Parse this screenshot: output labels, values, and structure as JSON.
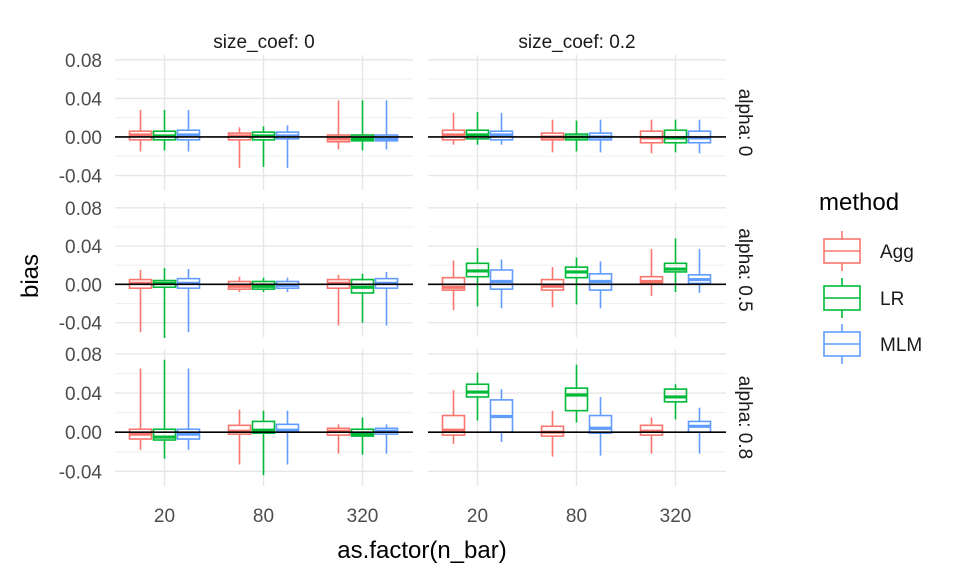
{
  "chart_data": {
    "type": "boxplot",
    "xlabel": "as.factor(n_bar)",
    "ylabel": "bias",
    "categories": [
      "20",
      "80",
      "320"
    ],
    "ylim": [
      -0.055,
      0.085
    ],
    "yticks": [
      -0.04,
      0.0,
      0.04,
      0.08
    ],
    "ytick_labels": [
      "-0.04",
      "0.00",
      "0.04",
      "0.08"
    ],
    "reference_line": 0,
    "grid": true,
    "facet_cols": [
      "size_coef: 0",
      "size_coef: 0.2"
    ],
    "facet_rows": [
      "alpha: 0",
      "alpha: 0.5",
      "alpha: 0.8"
    ],
    "legend": {
      "title": "method",
      "position": "right",
      "entries": [
        {
          "name": "Agg",
          "color": "#F8766D"
        },
        {
          "name": "LR",
          "color": "#00BA38"
        },
        {
          "name": "MLM",
          "color": "#619CFF"
        }
      ]
    },
    "panels": [
      {
        "row": 0,
        "col": 0,
        "boxes": {
          "Agg": [
            [
              -0.015,
              -0.003,
              0.002,
              0.006,
              0.028
            ],
            [
              -0.032,
              -0.003,
              0.001,
              0.004,
              0.01
            ],
            [
              -0.013,
              -0.005,
              -0.002,
              0.002,
              0.038
            ]
          ],
          "LR": [
            [
              -0.014,
              -0.003,
              0.001,
              0.006,
              0.028
            ],
            [
              -0.031,
              -0.003,
              0.001,
              0.005,
              0.011
            ],
            [
              -0.014,
              -0.004,
              -0.002,
              0.002,
              0.038
            ]
          ],
          "MLM": [
            [
              -0.015,
              -0.003,
              0.002,
              0.007,
              0.028
            ],
            [
              -0.032,
              -0.002,
              0.001,
              0.005,
              0.012
            ],
            [
              -0.013,
              -0.004,
              -0.002,
              0.002,
              0.038
            ]
          ]
        }
      },
      {
        "row": 0,
        "col": 1,
        "boxes": {
          "Agg": [
            [
              -0.008,
              -0.003,
              0.002,
              0.007,
              0.025
            ],
            [
              -0.016,
              -0.003,
              0.0,
              0.004,
              0.018
            ],
            [
              -0.017,
              -0.006,
              -0.001,
              0.006,
              0.018
            ]
          ],
          "LR": [
            [
              -0.008,
              -0.002,
              0.002,
              0.007,
              0.026
            ],
            [
              -0.015,
              -0.003,
              0.0,
              0.003,
              0.017
            ],
            [
              -0.016,
              -0.006,
              -0.001,
              0.007,
              0.018
            ]
          ],
          "MLM": [
            [
              -0.008,
              -0.003,
              0.002,
              0.006,
              0.025
            ],
            [
              -0.016,
              -0.003,
              0.0,
              0.004,
              0.018
            ],
            [
              -0.017,
              -0.006,
              -0.001,
              0.006,
              0.018
            ]
          ]
        }
      },
      {
        "row": 1,
        "col": 0,
        "boxes": {
          "Agg": [
            [
              -0.05,
              -0.004,
              0.001,
              0.005,
              0.015
            ],
            [
              -0.008,
              -0.005,
              -0.002,
              0.003,
              0.008
            ],
            [
              -0.043,
              -0.004,
              0.001,
              0.005,
              0.01
            ]
          ],
          "LR": [
            [
              -0.056,
              -0.003,
              0.001,
              0.004,
              0.017
            ],
            [
              -0.008,
              -0.005,
              -0.002,
              0.003,
              0.007
            ],
            [
              -0.04,
              -0.009,
              -0.003,
              0.005,
              0.011
            ]
          ],
          "MLM": [
            [
              -0.05,
              -0.004,
              0.001,
              0.006,
              0.016
            ],
            [
              -0.008,
              -0.004,
              -0.001,
              0.003,
              0.007
            ],
            [
              -0.043,
              -0.004,
              0.001,
              0.006,
              0.013
            ]
          ]
        }
      },
      {
        "row": 1,
        "col": 1,
        "boxes": {
          "Agg": [
            [
              -0.027,
              -0.006,
              -0.003,
              0.007,
              0.025
            ],
            [
              -0.024,
              -0.006,
              -0.002,
              0.005,
              0.018
            ],
            [
              -0.012,
              0.001,
              0.003,
              0.008,
              0.037
            ]
          ],
          "LR": [
            [
              -0.023,
              0.008,
              0.014,
              0.022,
              0.038
            ],
            [
              -0.021,
              0.007,
              0.013,
              0.018,
              0.028
            ],
            [
              -0.008,
              0.013,
              0.016,
              0.022,
              0.048
            ]
          ],
          "MLM": [
            [
              -0.025,
              -0.005,
              0.003,
              0.015,
              0.026
            ],
            [
              -0.025,
              -0.006,
              0.003,
              0.011,
              0.024
            ],
            [
              -0.009,
              0.001,
              0.005,
              0.01,
              0.037
            ]
          ]
        }
      },
      {
        "row": 2,
        "col": 0,
        "boxes": {
          "Agg": [
            [
              -0.018,
              -0.007,
              -0.002,
              0.003,
              0.065
            ],
            [
              -0.033,
              -0.002,
              0.001,
              0.007,
              0.023
            ],
            [
              -0.022,
              -0.003,
              0.001,
              0.004,
              0.008
            ]
          ],
          "LR": [
            [
              -0.027,
              -0.008,
              -0.005,
              0.003,
              0.074
            ],
            [
              -0.044,
              -0.001,
              0.002,
              0.011,
              0.022
            ],
            [
              -0.023,
              -0.004,
              -0.002,
              0.003,
              0.015
            ]
          ],
          "MLM": [
            [
              -0.018,
              -0.007,
              -0.002,
              0.003,
              0.065
            ],
            [
              -0.033,
              0.0,
              0.002,
              0.008,
              0.022
            ],
            [
              -0.022,
              -0.002,
              0.001,
              0.004,
              0.008
            ]
          ]
        }
      },
      {
        "row": 2,
        "col": 1,
        "boxes": {
          "Agg": [
            [
              -0.012,
              -0.003,
              0.002,
              0.017,
              0.043
            ],
            [
              -0.025,
              -0.004,
              0.0,
              0.006,
              0.022
            ],
            [
              -0.022,
              -0.003,
              0.001,
              0.007,
              0.015
            ]
          ],
          "LR": [
            [
              0.012,
              0.036,
              0.041,
              0.049,
              0.061
            ],
            [
              0.01,
              0.022,
              0.038,
              0.045,
              0.069
            ],
            [
              0.013,
              0.031,
              0.036,
              0.044,
              0.049
            ]
          ],
          "MLM": [
            [
              -0.01,
              0.0,
              0.016,
              0.033,
              0.044
            ],
            [
              -0.024,
              -0.001,
              0.004,
              0.017,
              0.036
            ],
            [
              -0.022,
              0.0,
              0.006,
              0.011,
              0.025
            ]
          ]
        }
      }
    ]
  }
}
